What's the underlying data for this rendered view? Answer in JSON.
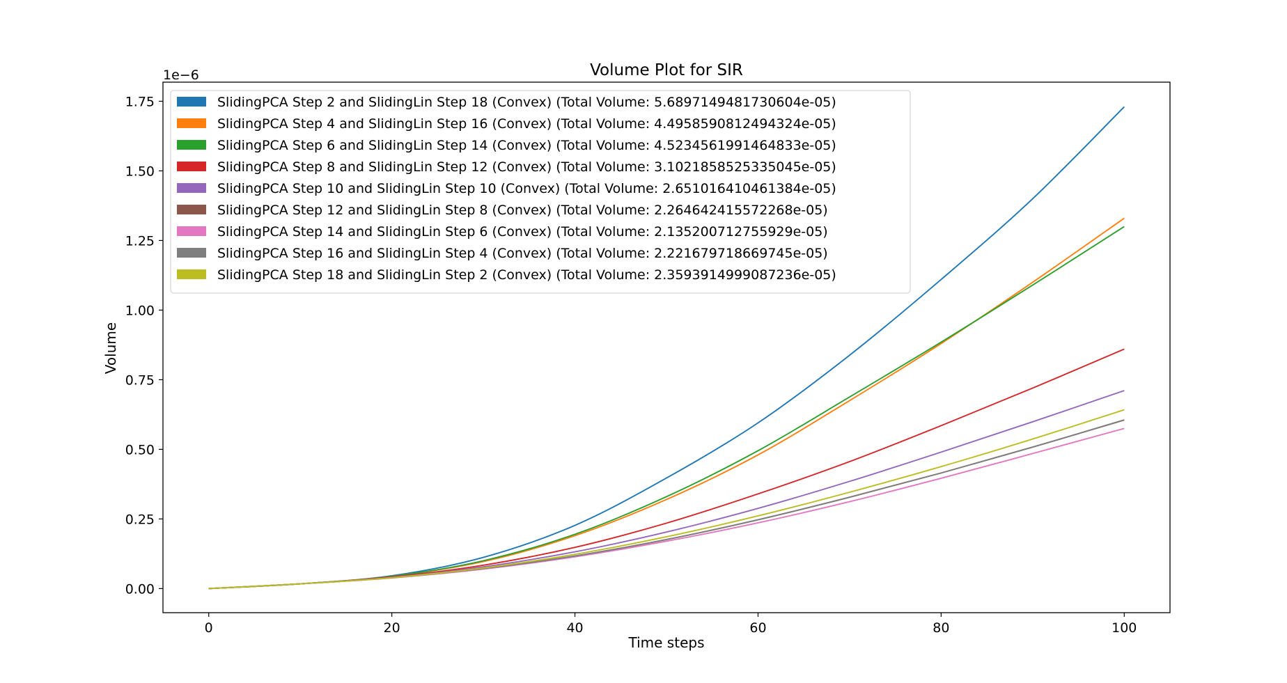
{
  "chart_data": {
    "type": "line",
    "title": "Volume Plot for SIR",
    "xlabel": "Time steps",
    "ylabel": "Volume",
    "y_scale_label": "1e−6",
    "xlim": [
      -5,
      105
    ],
    "ylim": [
      -0.0866,
      1.8186
    ],
    "x_ticks": [
      0,
      20,
      40,
      60,
      80,
      100
    ],
    "x_tick_labels": [
      "0",
      "20",
      "40",
      "60",
      "80",
      "100"
    ],
    "y_ticks": [
      0,
      0.25,
      0.5,
      0.75,
      1.0,
      1.25,
      1.5,
      1.75
    ],
    "y_tick_labels": [
      "0.00",
      "0.25",
      "0.50",
      "0.75",
      "1.00",
      "1.25",
      "1.50",
      "1.75"
    ],
    "grid": false,
    "legend_position": "top-left",
    "x": [
      0,
      10,
      20,
      30,
      40,
      50,
      60,
      70,
      80,
      90,
      100
    ],
    "series": [
      {
        "name": "SlidingPCA Step 2 and SlidingLin Step 18 (Convex) (Total Volume: 5.6897149481730604e-05)",
        "color": "#1f77b4",
        "values": [
          0.0,
          0.017,
          0.046,
          0.112,
          0.227,
          0.397,
          0.595,
          0.838,
          1.11,
          1.4,
          1.73
        ]
      },
      {
        "name": "SlidingPCA Step 4 and SlidingLin Step 16 (Convex) (Total Volume: 4.4958590812494324e-05)",
        "color": "#ff7f0e",
        "values": [
          0.0,
          0.017,
          0.044,
          0.097,
          0.19,
          0.32,
          0.48,
          0.675,
          0.88,
          1.1,
          1.33
        ]
      },
      {
        "name": "SlidingPCA Step 6 and SlidingLin Step 14 (Convex) (Total Volume: 4.5234561991464833e-05)",
        "color": "#2ca02c",
        "values": [
          0.0,
          0.017,
          0.044,
          0.1,
          0.195,
          0.33,
          0.495,
          0.688,
          0.885,
          1.09,
          1.3
        ]
      },
      {
        "name": "SlidingPCA Step 8 and SlidingLin Step 12 (Convex) (Total Volume: 3.1021858525335045e-05)",
        "color": "#d62728",
        "values": [
          0.0,
          0.017,
          0.042,
          0.084,
          0.148,
          0.235,
          0.34,
          0.456,
          0.585,
          0.72,
          0.86
        ]
      },
      {
        "name": "SlidingPCA Step 10 and SlidingLin Step 10 (Convex) (Total Volume: 2.651016410461384e-05)",
        "color": "#9467bd",
        "values": [
          0.0,
          0.017,
          0.04,
          0.078,
          0.132,
          0.203,
          0.288,
          0.385,
          0.49,
          0.599,
          0.711
        ]
      },
      {
        "name": "SlidingPCA Step 12 and SlidingLin Step 8 (Convex) (Total Volume: 2.264642415572268e-05)",
        "color": "#8c564b",
        "values": [
          0.0,
          0.017,
          0.039,
          0.072,
          0.117,
          0.176,
          0.247,
          0.328,
          0.415,
          0.508,
          0.605
        ]
      },
      {
        "name": "SlidingPCA Step 14 and SlidingLin Step 6 (Convex) (Total Volume: 2.135200712755929e-05)",
        "color": "#e377c2",
        "values": [
          0.0,
          0.017,
          0.038,
          0.07,
          0.114,
          0.17,
          0.236,
          0.312,
          0.396,
          0.485,
          0.575
        ]
      },
      {
        "name": "SlidingPCA Step 16 and SlidingLin Step 4 (Convex) (Total Volume: 2.221679718669745e-05)",
        "color": "#7f7f7f",
        "values": [
          0.0,
          0.017,
          0.039,
          0.072,
          0.117,
          0.176,
          0.247,
          0.328,
          0.415,
          0.508,
          0.606
        ]
      },
      {
        "name": "SlidingPCA Step 18 and SlidingLin Step 2 (Convex) (Total Volume: 2.3593914999087236e-05)",
        "color": "#bcbd22",
        "values": [
          0.0,
          0.017,
          0.039,
          0.074,
          0.123,
          0.186,
          0.261,
          0.346,
          0.438,
          0.537,
          0.642
        ]
      }
    ]
  }
}
